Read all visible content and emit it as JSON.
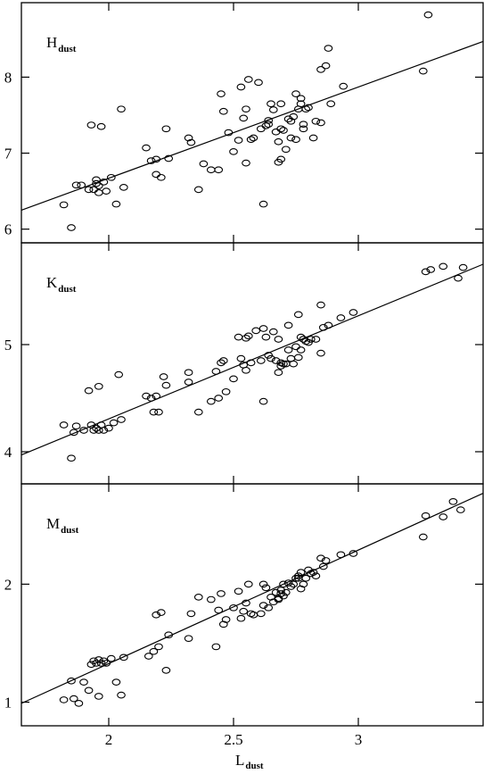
{
  "chart_data": [
    {
      "type": "scatter",
      "panel_label": {
        "main": "H",
        "sub": "dust"
      },
      "xlim": [
        1.65,
        3.5
      ],
      "ylim": [
        5.82,
        8.98
      ],
      "yticks": [
        6,
        7,
        8
      ],
      "ytick_labels": [
        "6",
        "7",
        "8"
      ],
      "fit_line": [
        [
          1.65,
          6.25
        ],
        [
          3.5,
          8.47
        ]
      ],
      "points": [
        [
          1.82,
          6.32
        ],
        [
          1.85,
          6.02
        ],
        [
          1.87,
          6.58
        ],
        [
          1.89,
          6.58
        ],
        [
          1.92,
          6.52
        ],
        [
          1.93,
          7.37
        ],
        [
          1.94,
          6.52
        ],
        [
          1.95,
          6.65
        ],
        [
          1.95,
          6.6
        ],
        [
          1.96,
          6.48
        ],
        [
          1.96,
          6.57
        ],
        [
          1.97,
          7.35
        ],
        [
          1.98,
          6.62
        ],
        [
          1.99,
          6.5
        ],
        [
          2.01,
          6.68
        ],
        [
          2.03,
          6.33
        ],
        [
          2.05,
          7.58
        ],
        [
          2.06,
          6.55
        ],
        [
          2.15,
          7.07
        ],
        [
          2.17,
          6.9
        ],
        [
          2.19,
          6.92
        ],
        [
          2.19,
          6.72
        ],
        [
          2.21,
          6.68
        ],
        [
          2.23,
          7.32
        ],
        [
          2.24,
          6.93
        ],
        [
          2.32,
          7.2
        ],
        [
          2.33,
          7.14
        ],
        [
          2.36,
          6.52
        ],
        [
          2.38,
          6.86
        ],
        [
          2.41,
          6.78
        ],
        [
          2.44,
          6.78
        ],
        [
          2.45,
          7.78
        ],
        [
          2.46,
          7.55
        ],
        [
          2.48,
          7.27
        ],
        [
          2.5,
          7.02
        ],
        [
          2.52,
          7.17
        ],
        [
          2.53,
          7.87
        ],
        [
          2.54,
          7.46
        ],
        [
          2.55,
          7.58
        ],
        [
          2.55,
          6.87
        ],
        [
          2.56,
          7.97
        ],
        [
          2.57,
          7.18
        ],
        [
          2.58,
          7.2
        ],
        [
          2.6,
          7.93
        ],
        [
          2.61,
          7.32
        ],
        [
          2.62,
          6.33
        ],
        [
          2.63,
          7.36
        ],
        [
          2.64,
          7.43
        ],
        [
          2.64,
          7.38
        ],
        [
          2.65,
          7.65
        ],
        [
          2.66,
          7.57
        ],
        [
          2.67,
          7.28
        ],
        [
          2.68,
          7.15
        ],
        [
          2.68,
          6.88
        ],
        [
          2.69,
          6.92
        ],
        [
          2.69,
          7.32
        ],
        [
          2.69,
          7.65
        ],
        [
          2.7,
          7.3
        ],
        [
          2.71,
          7.05
        ],
        [
          2.72,
          7.45
        ],
        [
          2.73,
          7.42
        ],
        [
          2.73,
          7.2
        ],
        [
          2.74,
          7.48
        ],
        [
          2.75,
          7.78
        ],
        [
          2.75,
          7.18
        ],
        [
          2.76,
          7.58
        ],
        [
          2.77,
          7.72
        ],
        [
          2.77,
          7.65
        ],
        [
          2.78,
          7.38
        ],
        [
          2.78,
          7.32
        ],
        [
          2.79,
          7.58
        ],
        [
          2.8,
          7.6
        ],
        [
          2.82,
          7.2
        ],
        [
          2.83,
          7.42
        ],
        [
          2.85,
          7.4
        ],
        [
          2.85,
          8.1
        ],
        [
          2.87,
          8.15
        ],
        [
          2.88,
          8.38
        ],
        [
          2.89,
          7.65
        ],
        [
          2.94,
          7.88
        ],
        [
          3.26,
          8.08
        ],
        [
          3.28,
          8.82
        ]
      ]
    },
    {
      "type": "scatter",
      "panel_label": {
        "main": "K",
        "sub": "dust"
      },
      "xlim": [
        1.65,
        3.5
      ],
      "ylim": [
        3.7,
        5.95
      ],
      "yticks": [
        4,
        5
      ],
      "ytick_labels": [
        "4",
        "5"
      ],
      "fit_line": [
        [
          1.65,
          3.97
        ],
        [
          3.5,
          5.75
        ]
      ],
      "points": [
        [
          1.82,
          4.25
        ],
        [
          1.85,
          3.94
        ],
        [
          1.86,
          4.18
        ],
        [
          1.87,
          4.24
        ],
        [
          1.9,
          4.2
        ],
        [
          1.92,
          4.57
        ],
        [
          1.93,
          4.25
        ],
        [
          1.94,
          4.2
        ],
        [
          1.95,
          4.22
        ],
        [
          1.96,
          4.61
        ],
        [
          1.96,
          4.2
        ],
        [
          1.97,
          4.25
        ],
        [
          1.98,
          4.2
        ],
        [
          2.0,
          4.22
        ],
        [
          2.02,
          4.27
        ],
        [
          2.04,
          4.72
        ],
        [
          2.05,
          4.3
        ],
        [
          2.15,
          4.52
        ],
        [
          2.17,
          4.5
        ],
        [
          2.18,
          4.37
        ],
        [
          2.19,
          4.52
        ],
        [
          2.2,
          4.37
        ],
        [
          2.22,
          4.7
        ],
        [
          2.23,
          4.62
        ],
        [
          2.32,
          4.74
        ],
        [
          2.32,
          4.65
        ],
        [
          2.36,
          4.37
        ],
        [
          2.41,
          4.47
        ],
        [
          2.43,
          4.75
        ],
        [
          2.44,
          4.5
        ],
        [
          2.45,
          4.83
        ],
        [
          2.46,
          4.85
        ],
        [
          2.47,
          4.56
        ],
        [
          2.5,
          4.68
        ],
        [
          2.52,
          5.07
        ],
        [
          2.53,
          4.87
        ],
        [
          2.54,
          4.81
        ],
        [
          2.55,
          4.76
        ],
        [
          2.55,
          5.06
        ],
        [
          2.56,
          5.08
        ],
        [
          2.57,
          4.83
        ],
        [
          2.59,
          5.13
        ],
        [
          2.61,
          4.85
        ],
        [
          2.62,
          4.47
        ],
        [
          2.62,
          5.15
        ],
        [
          2.63,
          5.07
        ],
        [
          2.64,
          4.9
        ],
        [
          2.65,
          4.87
        ],
        [
          2.66,
          5.12
        ],
        [
          2.67,
          4.85
        ],
        [
          2.68,
          4.74
        ],
        [
          2.68,
          5.05
        ],
        [
          2.69,
          4.8
        ],
        [
          2.69,
          4.83
        ],
        [
          2.7,
          4.82
        ],
        [
          2.71,
          4.82
        ],
        [
          2.72,
          5.18
        ],
        [
          2.72,
          4.95
        ],
        [
          2.73,
          4.87
        ],
        [
          2.74,
          4.82
        ],
        [
          2.75,
          4.98
        ],
        [
          2.76,
          5.28
        ],
        [
          2.76,
          4.88
        ],
        [
          2.77,
          5.07
        ],
        [
          2.77,
          4.95
        ],
        [
          2.78,
          5.05
        ],
        [
          2.79,
          5.03
        ],
        [
          2.8,
          5.02
        ],
        [
          2.81,
          5.05
        ],
        [
          2.83,
          5.05
        ],
        [
          2.85,
          4.92
        ],
        [
          2.86,
          5.16
        ],
        [
          2.88,
          5.18
        ],
        [
          2.93,
          5.25
        ],
        [
          2.98,
          5.3
        ],
        [
          3.27,
          5.68
        ],
        [
          3.29,
          5.7
        ],
        [
          3.34,
          5.73
        ],
        [
          3.4,
          5.62
        ],
        [
          3.42,
          5.72
        ],
        [
          2.85,
          5.37
        ]
      ]
    },
    {
      "type": "scatter",
      "panel_label": {
        "main": "M",
        "sub": "dust"
      },
      "xlim": [
        1.65,
        3.5
      ],
      "ylim": [
        0.8,
        2.85
      ],
      "yticks": [
        1,
        2
      ],
      "ytick_labels": [
        "1",
        "2"
      ],
      "fit_line": [
        [
          1.65,
          0.99
        ],
        [
          3.5,
          2.77
        ]
      ],
      "points": [
        [
          1.82,
          1.02
        ],
        [
          1.85,
          1.18
        ],
        [
          1.86,
          1.03
        ],
        [
          1.88,
          0.99
        ],
        [
          1.9,
          1.17
        ],
        [
          1.92,
          1.1
        ],
        [
          1.93,
          1.32
        ],
        [
          1.94,
          1.35
        ],
        [
          1.95,
          1.33
        ],
        [
          1.96,
          1.05
        ],
        [
          1.96,
          1.36
        ],
        [
          1.97,
          1.33
        ],
        [
          1.98,
          1.35
        ],
        [
          1.99,
          1.33
        ],
        [
          2.01,
          1.37
        ],
        [
          2.03,
          1.17
        ],
        [
          2.05,
          1.06
        ],
        [
          2.06,
          1.38
        ],
        [
          2.16,
          1.39
        ],
        [
          2.18,
          1.43
        ],
        [
          2.19,
          1.74
        ],
        [
          2.2,
          1.47
        ],
        [
          2.21,
          1.76
        ],
        [
          2.23,
          1.27
        ],
        [
          2.24,
          1.57
        ],
        [
          2.32,
          1.54
        ],
        [
          2.33,
          1.75
        ],
        [
          2.36,
          1.89
        ],
        [
          2.41,
          1.87
        ],
        [
          2.43,
          1.47
        ],
        [
          2.44,
          1.78
        ],
        [
          2.45,
          1.92
        ],
        [
          2.46,
          1.66
        ],
        [
          2.47,
          1.7
        ],
        [
          2.5,
          1.8
        ],
        [
          2.52,
          1.94
        ],
        [
          2.53,
          1.71
        ],
        [
          2.54,
          1.77
        ],
        [
          2.55,
          1.84
        ],
        [
          2.56,
          2.0
        ],
        [
          2.57,
          1.75
        ],
        [
          2.58,
          1.74
        ],
        [
          2.61,
          1.75
        ],
        [
          2.62,
          1.82
        ],
        [
          2.62,
          2.0
        ],
        [
          2.63,
          1.97
        ],
        [
          2.64,
          1.8
        ],
        [
          2.65,
          1.89
        ],
        [
          2.66,
          1.85
        ],
        [
          2.67,
          1.93
        ],
        [
          2.68,
          1.87
        ],
        [
          2.69,
          1.92
        ],
        [
          2.69,
          1.95
        ],
        [
          2.7,
          2.0
        ],
        [
          2.7,
          1.9
        ],
        [
          2.71,
          1.93
        ],
        [
          2.72,
          2.01
        ],
        [
          2.73,
          1.98
        ],
        [
          2.74,
          2.0
        ],
        [
          2.75,
          2.05
        ],
        [
          2.76,
          2.07
        ],
        [
          2.77,
          2.1
        ],
        [
          2.77,
          1.96
        ],
        [
          2.78,
          2.0
        ],
        [
          2.79,
          2.05
        ],
        [
          2.8,
          2.12
        ],
        [
          2.81,
          2.09
        ],
        [
          2.82,
          2.1
        ],
        [
          2.83,
          2.07
        ],
        [
          2.85,
          2.22
        ],
        [
          2.86,
          2.15
        ],
        [
          2.87,
          2.2
        ],
        [
          2.93,
          2.25
        ],
        [
          2.98,
          2.26
        ],
        [
          3.26,
          2.4
        ],
        [
          3.27,
          2.58
        ],
        [
          3.34,
          2.57
        ],
        [
          3.38,
          2.7
        ],
        [
          3.41,
          2.63
        ],
        [
          2.76,
          2.05
        ],
        [
          2.68,
          1.88
        ]
      ]
    }
  ],
  "x_axis": {
    "xticks": [
      2,
      2.5,
      3
    ],
    "xtick_labels": [
      "2",
      "2.5",
      "3"
    ],
    "label": {
      "main": "L",
      "sub": "dust"
    }
  }
}
